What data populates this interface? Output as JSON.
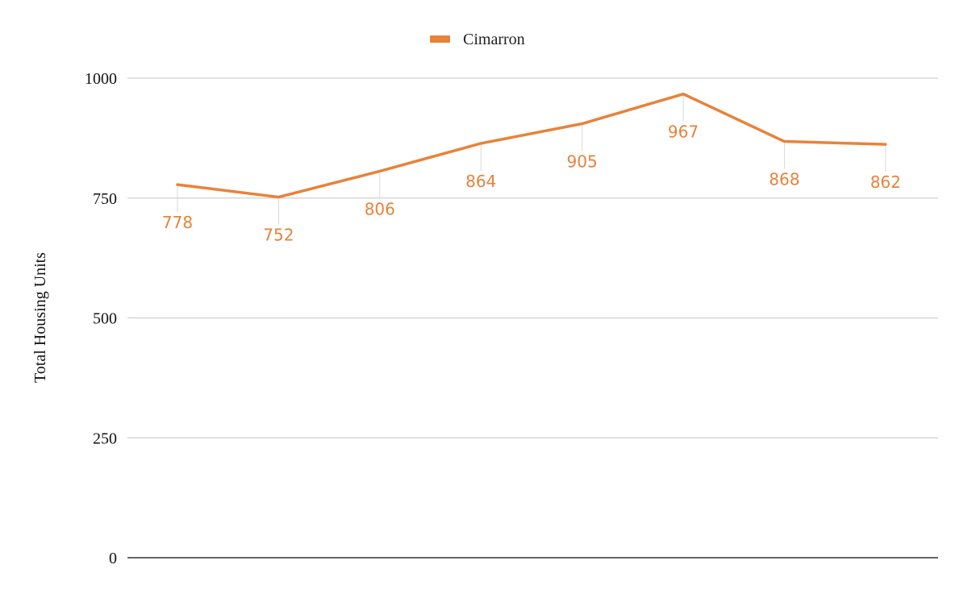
{
  "chart_data": {
    "type": "line",
    "title": "",
    "xlabel": "",
    "ylabel": "Total Housing Units",
    "ylim": [
      0,
      1000
    ],
    "yticks": [
      0,
      250,
      500,
      750,
      1000
    ],
    "grid": true,
    "legend_position": "top-center",
    "categories": [
      "",
      "",
      "",
      "",
      "",
      "",
      "",
      ""
    ],
    "series": [
      {
        "name": "Cimarron",
        "color": "#e8823a",
        "values": [
          778,
          752,
          806,
          864,
          905,
          967,
          868,
          862
        ],
        "data_labels": [
          "778",
          "752",
          "806",
          "864",
          "905",
          "967",
          "868",
          "862"
        ]
      }
    ]
  }
}
